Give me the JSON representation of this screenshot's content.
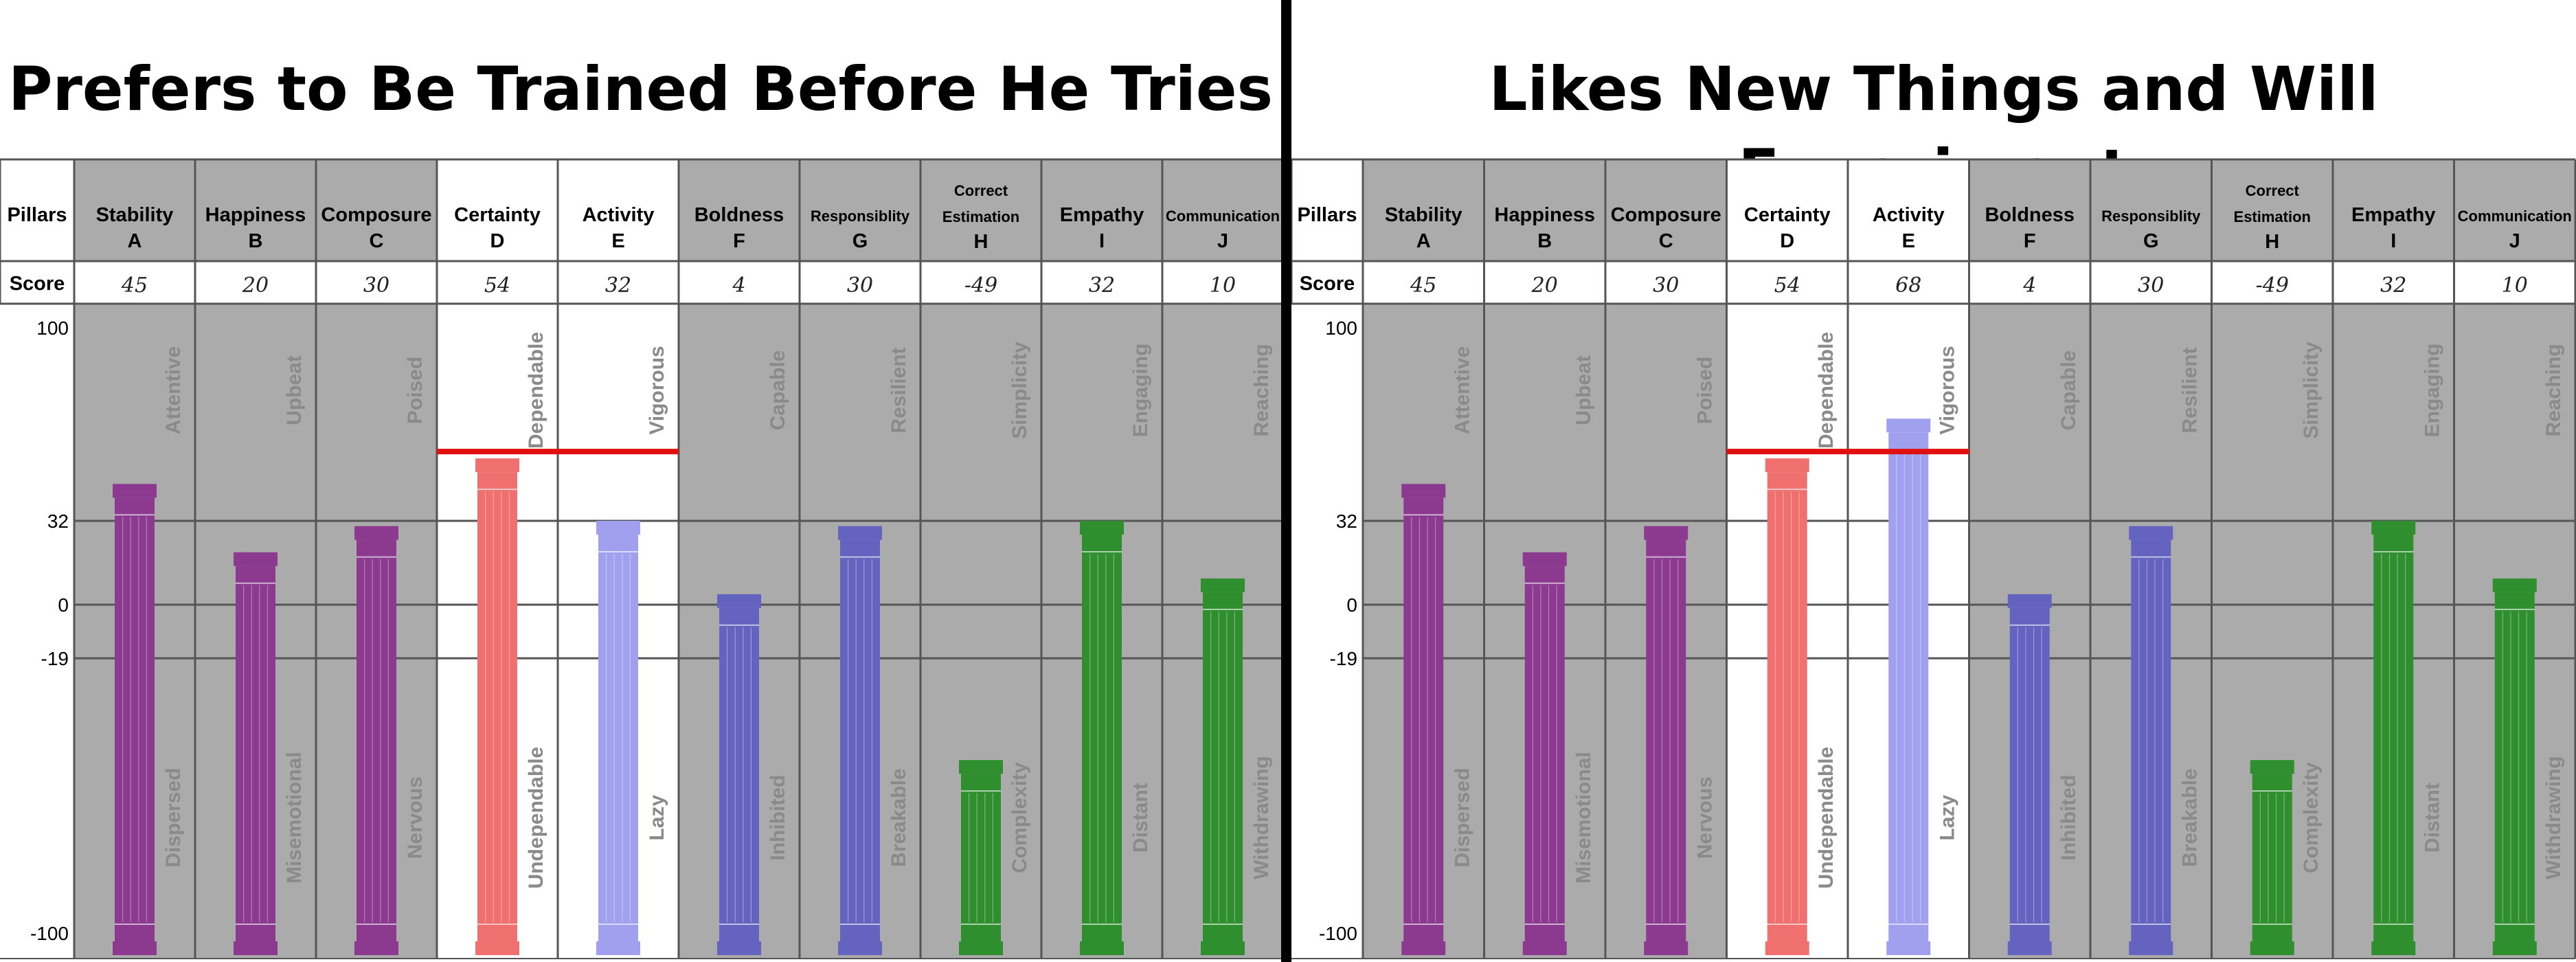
{
  "page": {
    "left_title": "Prefers to Be Trained Before He Tries",
    "right_title": "Likes New Things and Will Experiment"
  },
  "colors": {
    "purple": "#8b3a8f",
    "red": "#f07070",
    "light_blue": "#a0a0ef",
    "blue": "#6464c0",
    "green": "#2f8f2f",
    "ref_line": "#e01010",
    "shade": "#ababab",
    "highlight": "#ffffff"
  },
  "chart_data": [
    {
      "type": "bar",
      "title": "Prefers to Be Trained Before He Tries",
      "row_labels": {
        "pillars": "Pillars",
        "score": "Score"
      },
      "categories": [
        {
          "name": "Stability",
          "letter": "A",
          "score": "45",
          "value": 45,
          "color": "purple",
          "shaded": true,
          "top_label": "Attentive",
          "bottom_label": "Dispersed"
        },
        {
          "name": "Happiness",
          "letter": "B",
          "score": "20",
          "value": 20,
          "color": "purple",
          "shaded": true,
          "top_label": "Upbeat",
          "bottom_label": "Misemotional"
        },
        {
          "name": "Composure",
          "letter": "C",
          "score": "30",
          "value": 30,
          "color": "purple",
          "shaded": true,
          "top_label": "Poised",
          "bottom_label": "Nervous"
        },
        {
          "name": "Certainty",
          "letter": "D",
          "score": "54",
          "value": 54,
          "color": "red",
          "shaded": false,
          "top_label": "Dependable",
          "bottom_label": "Undependable"
        },
        {
          "name": "Activity",
          "letter": "E",
          "score": "32",
          "value": 32,
          "color": "light_blue",
          "shaded": false,
          "top_label": "Vigorous",
          "bottom_label": "Lazy"
        },
        {
          "name": "Boldness",
          "letter": "F",
          "score": "4",
          "value": 4,
          "color": "blue",
          "shaded": true,
          "top_label": "Capable",
          "bottom_label": "Inhibited"
        },
        {
          "name": "Responsiblity",
          "letter": "G",
          "score": "30",
          "value": 30,
          "color": "blue",
          "shaded": true,
          "top_label": "Resilient",
          "bottom_label": "Breakable"
        },
        {
          "name": "Correct Estimation",
          "letter": "H",
          "score": "-49",
          "value": -49,
          "color": "green",
          "shaded": true,
          "top_label": "Simplicity",
          "bottom_label": "Complexity"
        },
        {
          "name": "Empathy",
          "letter": "I",
          "score": "32",
          "value": 32,
          "color": "green",
          "shaded": true,
          "top_label": "Engaging",
          "bottom_label": "Distant"
        },
        {
          "name": "Communication",
          "letter": "J",
          "score": "10",
          "value": 10,
          "color": "green",
          "shaded": true,
          "top_label": "Reaching",
          "bottom_label": "Withdrawing"
        }
      ],
      "y_ticks": [
        100,
        32,
        0,
        -19,
        -100
      ],
      "ylim": [
        -100,
        100
      ],
      "reference_line": {
        "value": 54,
        "from": "D",
        "to": "E"
      },
      "grid": true
    },
    {
      "type": "bar",
      "title": "Likes New Things and Will Experiment",
      "row_labels": {
        "pillars": "Pillars",
        "score": "Score"
      },
      "categories": [
        {
          "name": "Stability",
          "letter": "A",
          "score": "45",
          "value": 45,
          "color": "purple",
          "shaded": true,
          "top_label": "Attentive",
          "bottom_label": "Dispersed"
        },
        {
          "name": "Happiness",
          "letter": "B",
          "score": "20",
          "value": 20,
          "color": "purple",
          "shaded": true,
          "top_label": "Upbeat",
          "bottom_label": "Misemotional"
        },
        {
          "name": "Composure",
          "letter": "C",
          "score": "30",
          "value": 30,
          "color": "purple",
          "shaded": true,
          "top_label": "Poised",
          "bottom_label": "Nervous"
        },
        {
          "name": "Certainty",
          "letter": "D",
          "score": "54",
          "value": 54,
          "color": "red",
          "shaded": false,
          "top_label": "Dependable",
          "bottom_label": "Undependable"
        },
        {
          "name": "Activity",
          "letter": "E",
          "score": "68",
          "value": 68,
          "color": "light_blue",
          "shaded": false,
          "top_label": "Vigorous",
          "bottom_label": "Lazy"
        },
        {
          "name": "Boldness",
          "letter": "F",
          "score": "4",
          "value": 4,
          "color": "blue",
          "shaded": true,
          "top_label": "Capable",
          "bottom_label": "Inhibited"
        },
        {
          "name": "Responsiblity",
          "letter": "G",
          "score": "30",
          "value": 30,
          "color": "blue",
          "shaded": true,
          "top_label": "Resilient",
          "bottom_label": "Breakable"
        },
        {
          "name": "Correct Estimation",
          "letter": "H",
          "score": "-49",
          "value": -49,
          "color": "green",
          "shaded": true,
          "top_label": "Simplicity",
          "bottom_label": "Complexity"
        },
        {
          "name": "Empathy",
          "letter": "I",
          "score": "32",
          "value": 32,
          "color": "green",
          "shaded": true,
          "top_label": "Engaging",
          "bottom_label": "Distant"
        },
        {
          "name": "Communication",
          "letter": "J",
          "score": "10",
          "value": 10,
          "color": "green",
          "shaded": true,
          "top_label": "Reaching",
          "bottom_label": "Withdrawing"
        }
      ],
      "y_ticks": [
        100,
        32,
        0,
        -19,
        -100
      ],
      "ylim": [
        -100,
        100
      ],
      "reference_line": {
        "value": 54,
        "from": "D",
        "to": "E"
      },
      "grid": true
    }
  ]
}
